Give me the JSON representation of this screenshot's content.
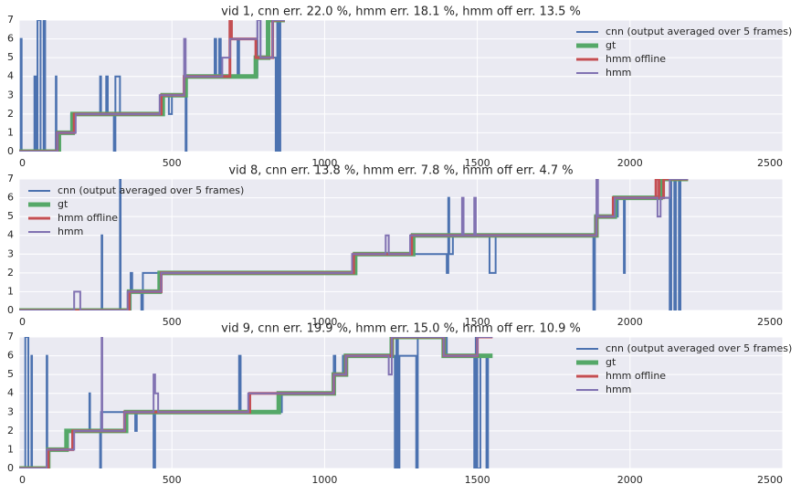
{
  "chart_data": [
    {
      "type": "line",
      "title": "vid 1, cnn err. 22.0 %, hmm err. 18.1 %, hmm off err. 13.5 %",
      "xlim": [
        0,
        2500
      ],
      "ylim": [
        0,
        7
      ],
      "xticks": [
        0,
        500,
        1000,
        1500,
        2000,
        2500
      ],
      "yticks": [
        0,
        1,
        2,
        3,
        4,
        5,
        6,
        7
      ],
      "grid": true,
      "legend": "upper right",
      "series": [
        {
          "name": "cnn (output averaged over 5 frames)",
          "color": "#4c72b0",
          "linewidth": 2,
          "x": [
            0,
            5,
            5,
            8,
            8,
            50,
            50,
            55,
            55,
            60,
            60,
            70,
            70,
            80,
            80,
            85,
            85,
            120,
            120,
            122,
            122,
            170,
            170,
            265,
            265,
            268,
            268,
            285,
            285,
            290,
            290,
            310,
            310,
            315,
            315,
            330,
            330,
            470,
            470,
            490,
            490,
            500,
            500,
            545,
            545,
            548,
            548,
            640,
            640,
            645,
            645,
            655,
            655,
            660,
            660,
            715,
            715,
            720,
            720,
            780,
            780,
            790,
            790,
            840,
            840,
            845,
            845,
            850,
            850,
            855,
            855,
            870
          ],
          "values": [
            0,
            0,
            6,
            6,
            0,
            0,
            4,
            4,
            0,
            0,
            7,
            7,
            0,
            0,
            7,
            7,
            0,
            0,
            4,
            4,
            1,
            1,
            2,
            2,
            4,
            4,
            2,
            2,
            4,
            4,
            2,
            2,
            0,
            0,
            4,
            4,
            2,
            2,
            3,
            3,
            2,
            2,
            3,
            3,
            0,
            0,
            4,
            4,
            6,
            6,
            4,
            4,
            6,
            6,
            4,
            4,
            6,
            6,
            4,
            4,
            7,
            7,
            5,
            5,
            0,
            0,
            7,
            7,
            0,
            0,
            7,
            7
          ]
        },
        {
          "name": "gt",
          "color": "#55a868",
          "linewidth": 5,
          "x": [
            0,
            130,
            130,
            175,
            175,
            470,
            470,
            545,
            545,
            775,
            775,
            815,
            815,
            870
          ],
          "values": [
            0,
            0,
            1,
            1,
            2,
            2,
            3,
            3,
            4,
            4,
            5,
            5,
            7,
            7
          ]
        },
        {
          "name": "hmm offline",
          "color": "#c44e52",
          "linewidth": 3,
          "x": [
            0,
            125,
            125,
            180,
            180,
            465,
            465,
            540,
            540,
            690,
            690,
            695,
            695,
            775,
            775,
            830,
            830,
            870
          ],
          "values": [
            0,
            0,
            1,
            1,
            2,
            2,
            3,
            3,
            4,
            4,
            7,
            7,
            6,
            6,
            5,
            5,
            7,
            7
          ]
        },
        {
          "name": "hmm",
          "color": "#8172b2",
          "linewidth": 2,
          "x": [
            0,
            125,
            125,
            185,
            185,
            460,
            460,
            540,
            540,
            545,
            545,
            665,
            665,
            690,
            690,
            780,
            780,
            790,
            790,
            830,
            830,
            870
          ],
          "values": [
            0,
            0,
            1,
            1,
            2,
            2,
            3,
            3,
            6,
            6,
            4,
            4,
            5,
            5,
            6,
            6,
            7,
            7,
            5,
            5,
            7,
            7
          ]
        }
      ]
    },
    {
      "type": "line",
      "title": "vid 8, cnn err. 13.8 %, hmm err. 7.8 %, hmm off err. 4.7 %",
      "xlim": [
        0,
        2500
      ],
      "ylim": [
        0,
        7
      ],
      "xticks": [
        0,
        500,
        1000,
        1500,
        2000,
        2500
      ],
      "yticks": [
        0,
        1,
        2,
        3,
        4,
        5,
        6,
        7
      ],
      "grid": true,
      "legend": "upper left",
      "series": [
        {
          "name": "cnn (output averaged over 5 frames)",
          "color": "#4c72b0",
          "linewidth": 2,
          "x": [
            0,
            270,
            270,
            272,
            272,
            330,
            330,
            332,
            332,
            365,
            365,
            370,
            370,
            400,
            400,
            405,
            405,
            1095,
            1095,
            1400,
            1400,
            1405,
            1405,
            1408,
            1408,
            1420,
            1420,
            1540,
            1540,
            1560,
            1560,
            1880,
            1880,
            1885,
            1885,
            1960,
            1960,
            1980,
            1980,
            1983,
            1983,
            2130,
            2130,
            2135,
            2135,
            2145,
            2145,
            2150,
            2150,
            2160,
            2160,
            2165,
            2165,
            2180
          ],
          "values": [
            0,
            0,
            4,
            4,
            0,
            0,
            7,
            7,
            0,
            0,
            2,
            2,
            1,
            1,
            0,
            0,
            2,
            2,
            3,
            3,
            2,
            2,
            6,
            6,
            3,
            3,
            4,
            4,
            2,
            2,
            4,
            4,
            0,
            0,
            5,
            5,
            6,
            6,
            2,
            2,
            6,
            6,
            0,
            0,
            7,
            7,
            0,
            0,
            7,
            7,
            0,
            0,
            7,
            7
          ]
        },
        {
          "name": "gt",
          "color": "#55a868",
          "linewidth": 5,
          "x": [
            0,
            360,
            360,
            460,
            460,
            1100,
            1100,
            1290,
            1290,
            1890,
            1890,
            1950,
            1950,
            2100,
            2100,
            2190
          ],
          "values": [
            0,
            0,
            1,
            1,
            2,
            2,
            3,
            3,
            4,
            4,
            5,
            5,
            6,
            6,
            7,
            7
          ]
        },
        {
          "name": "hmm offline",
          "color": "#c44e52",
          "linewidth": 3,
          "x": [
            0,
            360,
            360,
            465,
            465,
            1095,
            1095,
            1285,
            1285,
            1890,
            1890,
            1945,
            1945,
            2085,
            2085,
            2095,
            2095,
            2110,
            2110,
            2190
          ],
          "values": [
            0,
            0,
            1,
            1,
            2,
            2,
            3,
            3,
            4,
            4,
            5,
            5,
            6,
            6,
            7,
            7,
            6,
            6,
            7,
            7
          ]
        },
        {
          "name": "hmm",
          "color": "#8172b2",
          "linewidth": 2,
          "x": [
            0,
            180,
            180,
            200,
            200,
            355,
            355,
            465,
            465,
            1090,
            1090,
            1200,
            1200,
            1210,
            1210,
            1280,
            1280,
            1450,
            1450,
            1455,
            1455,
            1490,
            1490,
            1495,
            1495,
            1890,
            1890,
            1895,
            1895,
            1950,
            1950,
            2090,
            2090,
            2100,
            2100,
            2130,
            2130,
            2190
          ],
          "values": [
            0,
            0,
            1,
            1,
            0,
            0,
            1,
            1,
            2,
            2,
            3,
            3,
            4,
            4,
            3,
            3,
            4,
            4,
            6,
            6,
            4,
            4,
            6,
            6,
            4,
            4,
            7,
            7,
            5,
            5,
            6,
            6,
            5,
            5,
            6,
            6,
            7,
            7
          ]
        }
      ]
    },
    {
      "type": "line",
      "title": "vid 9, cnn err. 19.9 %, hmm err. 15.0 %, hmm off err. 10.9 %",
      "xlim": [
        0,
        2500
      ],
      "ylim": [
        0,
        7
      ],
      "xticks": [
        0,
        500,
        1000,
        1500,
        2000,
        2500
      ],
      "yticks": [
        0,
        1,
        2,
        3,
        4,
        5,
        6,
        7
      ],
      "grid": true,
      "legend": "upper right",
      "series": [
        {
          "name": "cnn (output averaged over 5 frames)",
          "color": "#4c72b0",
          "linewidth": 2,
          "x": [
            0,
            20,
            20,
            30,
            30,
            40,
            40,
            42,
            42,
            90,
            90,
            92,
            92,
            160,
            160,
            230,
            230,
            232,
            232,
            265,
            265,
            268,
            268,
            380,
            380,
            385,
            385,
            440,
            440,
            445,
            445,
            720,
            720,
            725,
            725,
            860,
            860,
            1030,
            1030,
            1035,
            1035,
            1060,
            1060,
            1230,
            1230,
            1235,
            1235,
            1240,
            1240,
            1245,
            1245,
            1300,
            1300,
            1305,
            1305,
            1400,
            1400,
            1490,
            1490,
            1495,
            1495,
            1500,
            1500,
            1510,
            1510,
            1530,
            1530,
            1535,
            1535,
            1545
          ],
          "values": [
            0,
            0,
            7,
            7,
            0,
            0,
            6,
            6,
            0,
            0,
            6,
            6,
            1,
            1,
            2,
            2,
            4,
            4,
            2,
            2,
            0,
            0,
            3,
            3,
            2,
            2,
            3,
            3,
            0,
            0,
            3,
            3,
            6,
            6,
            3,
            3,
            4,
            4,
            6,
            6,
            5,
            5,
            6,
            6,
            0,
            0,
            7,
            7,
            0,
            0,
            6,
            6,
            0,
            0,
            7,
            7,
            6,
            6,
            0,
            0,
            7,
            7,
            0,
            0,
            6,
            6,
            0,
            0,
            6,
            6
          ]
        },
        {
          "name": "gt",
          "color": "#55a868",
          "linewidth": 5,
          "x": [
            0,
            95,
            95,
            155,
            155,
            350,
            350,
            850,
            850,
            1030,
            1030,
            1070,
            1070,
            1220,
            1220,
            1390,
            1390,
            1550
          ],
          "values": [
            0,
            0,
            1,
            1,
            2,
            2,
            3,
            3,
            4,
            4,
            5,
            5,
            6,
            6,
            7,
            7,
            6,
            6
          ]
        },
        {
          "name": "hmm offline",
          "color": "#c44e52",
          "linewidth": 3,
          "x": [
            0,
            95,
            95,
            175,
            175,
            345,
            345,
            755,
            755,
            1030,
            1030,
            1070,
            1070,
            1220,
            1220,
            1390,
            1390,
            1500,
            1500,
            1550
          ],
          "values": [
            0,
            0,
            1,
            1,
            2,
            2,
            3,
            3,
            4,
            4,
            5,
            5,
            6,
            6,
            7,
            7,
            6,
            6,
            7,
            7
          ]
        },
        {
          "name": "hmm",
          "color": "#8172b2",
          "linewidth": 2,
          "x": [
            0,
            90,
            90,
            180,
            180,
            270,
            270,
            272,
            272,
            345,
            345,
            440,
            440,
            445,
            445,
            455,
            455,
            750,
            750,
            1030,
            1030,
            1070,
            1070,
            1210,
            1210,
            1220,
            1220,
            1390,
            1390,
            1500,
            1500,
            1550
          ],
          "values": [
            0,
            0,
            1,
            1,
            2,
            2,
            7,
            7,
            2,
            2,
            3,
            3,
            5,
            5,
            4,
            4,
            3,
            3,
            4,
            4,
            5,
            5,
            6,
            6,
            5,
            5,
            7,
            7,
            6,
            6,
            7,
            7
          ]
        }
      ]
    }
  ]
}
